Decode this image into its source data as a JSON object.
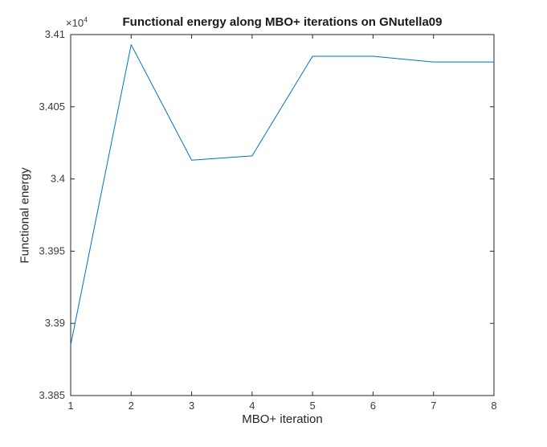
{
  "chart_data": {
    "type": "line",
    "title": "Functional energy along MBO+ iterations on GNutella09",
    "xlabel": "MBO+ iteration",
    "ylabel": "Functional energy",
    "x": [
      1,
      2,
      3,
      4,
      5,
      6,
      7,
      8
    ],
    "series": [
      {
        "name": "Functional energy",
        "values": [
          33885,
          34093,
          34013,
          34016,
          34085,
          34085,
          34081,
          34081
        ]
      }
    ],
    "xlim": [
      1,
      8
    ],
    "ylim": [
      33850,
      34100
    ],
    "x_ticks": {
      "values": [
        1,
        2,
        3,
        4,
        5,
        6,
        7,
        8
      ],
      "labels": [
        "1",
        "2",
        "3",
        "4",
        "5",
        "6",
        "7",
        "8"
      ]
    },
    "y_ticks": {
      "values": [
        33850,
        33900,
        33950,
        34000,
        34050,
        34100
      ],
      "labels": [
        "3.385",
        "3.39",
        "3.395",
        "3.4",
        "3.405",
        "3.41"
      ]
    },
    "y_exponent": {
      "base": "×10",
      "power": "4"
    },
    "grid": false,
    "legend": "none",
    "line_color": "#0072BD",
    "axis_color": "#262626",
    "tick_label_color": "#3b3b3b",
    "background": "#ffffff"
  }
}
